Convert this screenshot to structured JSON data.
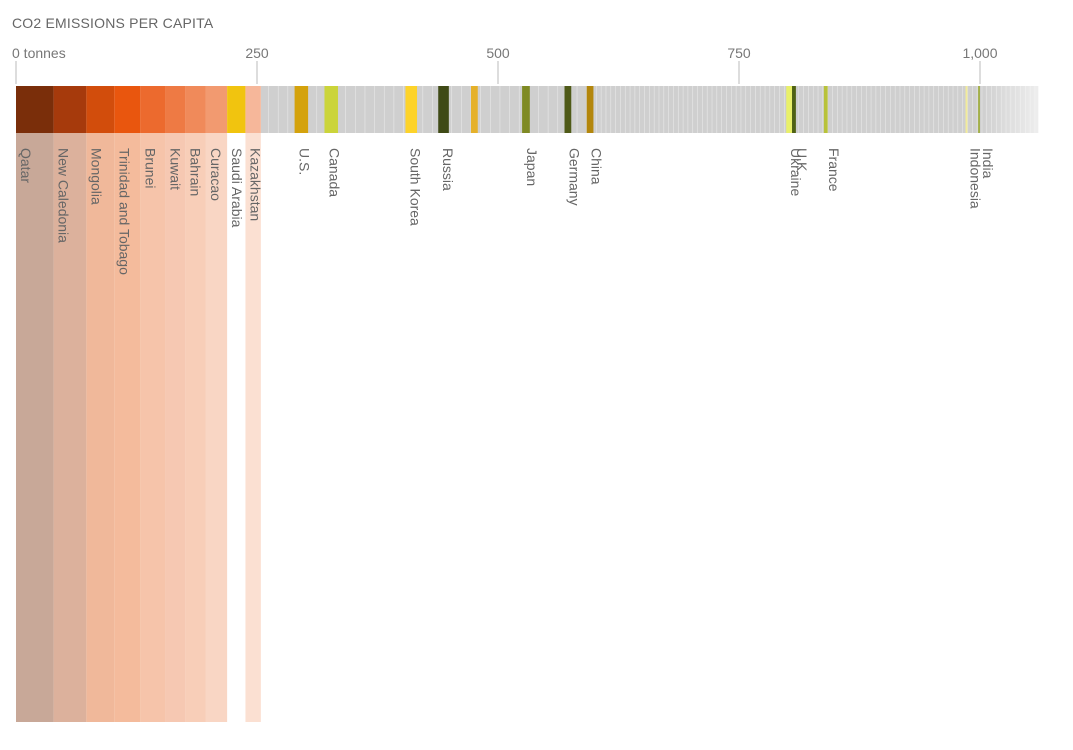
{
  "chart_data": {
    "type": "bar",
    "title": "CO2 EMISSIONS PER CAPITA",
    "subtitle": "",
    "xlabel": "",
    "ylabel": "",
    "axis": {
      "domain": [
        0,
        1060
      ],
      "ticks": [
        {
          "value": 0,
          "label": "0 tonnes"
        },
        {
          "value": 250,
          "label": "250"
        },
        {
          "value": 500,
          "label": "500"
        },
        {
          "value": 750,
          "label": "750"
        },
        {
          "value": 1000,
          "label": "1,000"
        }
      ]
    },
    "grid": false,
    "legend": "none",
    "top_emitters": [
      {
        "name": "Qatar",
        "start": 0,
        "end": 39,
        "color": "#7a2e0a",
        "pale": "#c8a898"
      },
      {
        "name": "New Caledonia",
        "start": 39,
        "end": 73,
        "color": "#a63a0c",
        "pale": "#dcb19c"
      },
      {
        "name": "Mongolia",
        "start": 73,
        "end": 102,
        "color": "#d24d0c",
        "pale": "#f0b89a"
      },
      {
        "name": "Trinidad and Tobago",
        "start": 102,
        "end": 129,
        "color": "#e9560e",
        "pale": "#f4bb9c"
      },
      {
        "name": "Brunei",
        "start": 129,
        "end": 155,
        "color": "#ec6a2e",
        "pale": "#f6c4aa"
      },
      {
        "name": "Kuwait",
        "start": 155,
        "end": 176,
        "color": "#ee7a44",
        "pale": "#f6c8b2"
      },
      {
        "name": "Bahrain",
        "start": 176,
        "end": 197,
        "color": "#f08a5a",
        "pale": "#f8ceb8"
      },
      {
        "name": "Curacao",
        "start": 197,
        "end": 219,
        "color": "#f29a70",
        "pale": "#f9d6c4"
      },
      {
        "name": "Saudi Arabia",
        "start": 219,
        "end": 238,
        "color": "#f1c40f",
        "pale": ""
      },
      {
        "name": "Kazakhstan",
        "start": 238,
        "end": 254,
        "color": "#f6b79a",
        "pale": "#fbe0d2"
      }
    ],
    "highlights": [
      {
        "name": "U.S.",
        "start": 289,
        "end": 303,
        "color": "#d4a20c"
      },
      {
        "name": "Canada",
        "start": 320,
        "end": 334,
        "color": "#cbd43a"
      },
      {
        "name": "South Korea",
        "start": 404,
        "end": 416,
        "color": "#fdd32a"
      },
      {
        "name": "Russia",
        "start": 438,
        "end": 449,
        "color": "#3f4a16"
      },
      {
        "name": "",
        "start": 472,
        "end": 479,
        "color": "#e5b12a"
      },
      {
        "name": "Japan",
        "start": 525,
        "end": 533,
        "color": "#7f8a24"
      },
      {
        "name": "Germany",
        "start": 569,
        "end": 576,
        "color": "#4f5a18"
      },
      {
        "name": "China",
        "start": 592,
        "end": 599,
        "color": "#b3860c"
      },
      {
        "name": "Ukraine",
        "start": 799,
        "end": 805,
        "color": "#e9f06a"
      },
      {
        "name": "U.K.",
        "start": 805,
        "end": 809,
        "color": "#4f6214"
      },
      {
        "name": "France",
        "start": 838,
        "end": 842,
        "color": "#b8c23a"
      },
      {
        "name": "Indonesia",
        "start": 985,
        "end": 987,
        "color": "#f2ec9a"
      },
      {
        "name": "India",
        "start": 998,
        "end": 1000,
        "color": "#a3b04a"
      }
    ],
    "other_color": "#cfcfcf",
    "tail_fade": {
      "start": 1000,
      "end": 1060
    }
  }
}
